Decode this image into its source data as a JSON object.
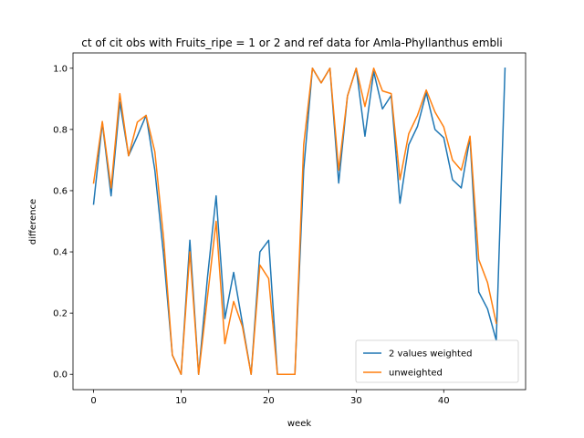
{
  "chart_data": {
    "type": "line",
    "title": "ct of cit obs with Fruits_ripe = 1 or 2 and ref data for Amla-Phyllanthus embli",
    "xlabel": "week",
    "ylabel": "difference",
    "xlim": [
      -2.35,
      49.35
    ],
    "ylim": [
      -0.05,
      1.05
    ],
    "xticks": [
      0,
      10,
      20,
      30,
      40
    ],
    "yticks": [
      0.0,
      0.2,
      0.4,
      0.6,
      0.8,
      1.0
    ],
    "xtick_labels": [
      "0",
      "10",
      "20",
      "30",
      "40"
    ],
    "ytick_labels": [
      "0.0",
      "0.2",
      "0.4",
      "0.6",
      "0.8",
      "1.0"
    ],
    "grid": false,
    "legend_position": "lower-right",
    "series": [
      {
        "name": "2 values weighted",
        "color": "#1f77b4",
        "x": [
          0,
          1,
          2,
          3,
          4,
          5,
          6,
          7,
          8,
          9,
          10,
          11,
          12,
          13,
          14,
          15,
          16,
          17,
          18,
          19,
          20,
          21,
          22,
          23,
          24,
          25,
          26,
          27,
          28,
          29,
          30,
          31,
          32,
          33,
          34,
          35,
          36,
          37,
          38,
          39,
          40,
          41,
          42,
          43,
          44,
          45,
          46,
          47
        ],
        "values": [
          0.556,
          0.822,
          0.583,
          0.889,
          0.714,
          0.778,
          0.846,
          0.667,
          0.389,
          0.063,
          0.0,
          0.438,
          0.0,
          0.313,
          0.583,
          0.182,
          0.333,
          0.167,
          0.0,
          0.4,
          0.438,
          0.0,
          0.0,
          0.0,
          0.667,
          1.0,
          0.952,
          1.0,
          0.625,
          0.909,
          1.0,
          0.778,
          0.989,
          0.867,
          0.911,
          0.559,
          0.75,
          0.81,
          0.92,
          0.8,
          0.773,
          0.636,
          0.609,
          0.773,
          0.269,
          0.214,
          0.111,
          1.0
        ]
      },
      {
        "name": "unweighted",
        "color": "#ff7f0e",
        "x": [
          0,
          1,
          2,
          3,
          4,
          5,
          6,
          7,
          8,
          9,
          10,
          11,
          12,
          13,
          14,
          15,
          16,
          17,
          18,
          19,
          20,
          21,
          22,
          23,
          24,
          25,
          26,
          27,
          28,
          29,
          30,
          31,
          32,
          33,
          34,
          35,
          36,
          37,
          38,
          39,
          40,
          41,
          42,
          43,
          44,
          45,
          46
        ],
        "values": [
          0.625,
          0.826,
          0.609,
          0.917,
          0.714,
          0.824,
          0.846,
          0.727,
          0.444,
          0.063,
          0.0,
          0.4,
          0.0,
          0.25,
          0.5,
          0.1,
          0.238,
          0.156,
          0.0,
          0.357,
          0.313,
          0.0,
          0.0,
          0.0,
          0.75,
          1.0,
          0.952,
          1.0,
          0.667,
          0.909,
          1.0,
          0.875,
          1.0,
          0.926,
          0.917,
          0.636,
          0.786,
          0.846,
          0.929,
          0.857,
          0.808,
          0.7,
          0.667,
          0.778,
          0.375,
          0.3,
          0.167
        ]
      }
    ]
  }
}
